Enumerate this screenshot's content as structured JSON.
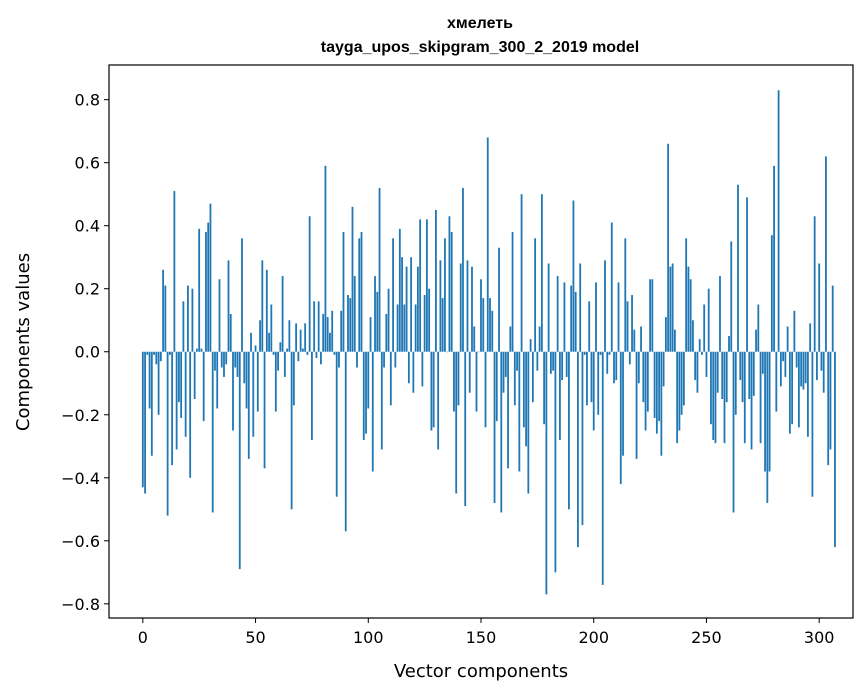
{
  "chart_data": {
    "type": "bar",
    "title_lines": [
      "хмелеть",
      "tayga_upos_skipgram_300_2_2019 model"
    ],
    "xlabel": "Vector components",
    "ylabel": "Components values",
    "xlim": [
      -15,
      315
    ],
    "ylim": [
      -0.845,
      0.91
    ],
    "xticks": [
      0,
      50,
      100,
      150,
      200,
      250,
      300
    ],
    "xtick_labels": [
      "0",
      "50",
      "100",
      "150",
      "200",
      "250",
      "300"
    ],
    "yticks": [
      -0.8,
      -0.6,
      -0.4,
      -0.2,
      0.0,
      0.2,
      0.4,
      0.6,
      0.8
    ],
    "ytick_labels": [
      "−0.8",
      "−0.6",
      "−0.4",
      "−0.2",
      "0.0",
      "0.2",
      "0.4",
      "0.6",
      "0.8"
    ],
    "bar_color": "#1f77b4",
    "bar_width": 0.8,
    "values": [
      -0.43,
      -0.45,
      -0.01,
      -0.18,
      -0.33,
      -0.01,
      -0.04,
      -0.2,
      -0.03,
      0.26,
      0.21,
      -0.52,
      -0.01,
      -0.36,
      0.51,
      -0.31,
      -0.16,
      -0.21,
      0.16,
      -0.27,
      0.21,
      -0.4,
      0.2,
      -0.15,
      0.01,
      0.39,
      0.01,
      -0.22,
      0.38,
      0.41,
      0.47,
      -0.51,
      -0.06,
      -0.18,
      0.23,
      -0.05,
      -0.08,
      -0.04,
      0.29,
      0.12,
      -0.25,
      -0.05,
      -0.08,
      -0.69,
      0.36,
      -0.1,
      -0.18,
      -0.34,
      0.06,
      -0.27,
      0.02,
      -0.19,
      0.1,
      0.29,
      -0.37,
      0.26,
      0.06,
      0.15,
      -0.01,
      -0.19,
      -0.06,
      0.03,
      0.24,
      -0.08,
      0.01,
      0.1,
      -0.5,
      -0.17,
      0.09,
      -0.03,
      0.07,
      0.01,
      0.09,
      -0.01,
      0.43,
      -0.28,
      0.16,
      -0.02,
      0.16,
      -0.04,
      0.12,
      0.59,
      0.11,
      0.06,
      0.13,
      -0.01,
      -0.46,
      -0.05,
      0.13,
      0.38,
      -0.57,
      0.18,
      0.17,
      0.46,
      0.24,
      -0.05,
      0.36,
      0.38,
      -0.28,
      -0.26,
      -0.18,
      0.11,
      -0.38,
      0.24,
      0.19,
      0.52,
      -0.31,
      -0.05,
      0.12,
      0.2,
      -0.17,
      0.36,
      -0.05,
      0.15,
      0.39,
      0.3,
      0.15,
      0.27,
      -0.1,
      0.3,
      -0.13,
      0.15,
      0.27,
      0.42,
      -0.11,
      0.18,
      0.42,
      0.2,
      -0.25,
      -0.24,
      0.45,
      -0.31,
      0.29,
      0.17,
      0.36,
      0.0,
      0.43,
      0.38,
      -0.19,
      -0.45,
      -0.17,
      0.28,
      0.52,
      -0.49,
      0.29,
      -0.13,
      0.27,
      0.08,
      -0.19,
      0.0,
      0.23,
      0.17,
      -0.24,
      0.68,
      0.17,
      0.13,
      -0.48,
      -0.22,
      0.33,
      -0.51,
      -0.13,
      -0.08,
      -0.37,
      0.08,
      0.38,
      -0.17,
      -0.06,
      -0.38,
      0.5,
      -0.24,
      -0.3,
      -0.45,
      0.04,
      -0.16,
      0.36,
      -0.06,
      0.08,
      0.5,
      -0.23,
      -0.77,
      0.28,
      -0.07,
      -0.06,
      -0.7,
      0.24,
      -0.28,
      -0.09,
      0.22,
      -0.08,
      -0.5,
      0.21,
      0.48,
      0.19,
      -0.62,
      0.28,
      -0.55,
      -0.01,
      -0.17,
      0.16,
      -0.16,
      -0.25,
      0.22,
      -0.2,
      -0.01,
      -0.74,
      0.29,
      -0.07,
      -0.01,
      0.41,
      -0.1,
      -0.09,
      0.22,
      -0.42,
      -0.33,
      0.36,
      0.16,
      -0.04,
      0.18,
      0.07,
      -0.34,
      -0.1,
      0.08,
      -0.16,
      -0.25,
      -0.19,
      0.23,
      0.23,
      -0.21,
      -0.26,
      -0.22,
      -0.33,
      -0.11,
      0.11,
      0.66,
      0.27,
      0.28,
      0.07,
      -0.29,
      -0.25,
      -0.2,
      -0.17,
      0.36,
      0.27,
      0.23,
      0.1,
      -0.09,
      -0.13,
      0.04,
      -0.01,
      0.15,
      -0.08,
      0.2,
      -0.23,
      -0.28,
      -0.29,
      -0.13,
      0.24,
      -0.15,
      -0.29,
      -0.16,
      0.05,
      0.35,
      -0.51,
      -0.2,
      0.53,
      -0.09,
      -0.16,
      -0.29,
      0.49,
      -0.15,
      -0.31,
      -0.14,
      0.07,
      0.15,
      -0.29,
      -0.07,
      -0.38,
      -0.48,
      -0.38,
      0.37,
      0.59,
      -0.19,
      0.83,
      -0.11,
      -0.03,
      -0.08,
      0.08,
      -0.26,
      -0.23,
      0.13,
      -0.05,
      -0.24,
      -0.11,
      -0.12,
      -0.1,
      -0.27,
      0.09,
      -0.46,
      0.43,
      -0.09,
      0.28,
      -0.06,
      -0.13,
      0.62,
      -0.36,
      -0.31,
      0.21,
      -0.62
    ]
  }
}
